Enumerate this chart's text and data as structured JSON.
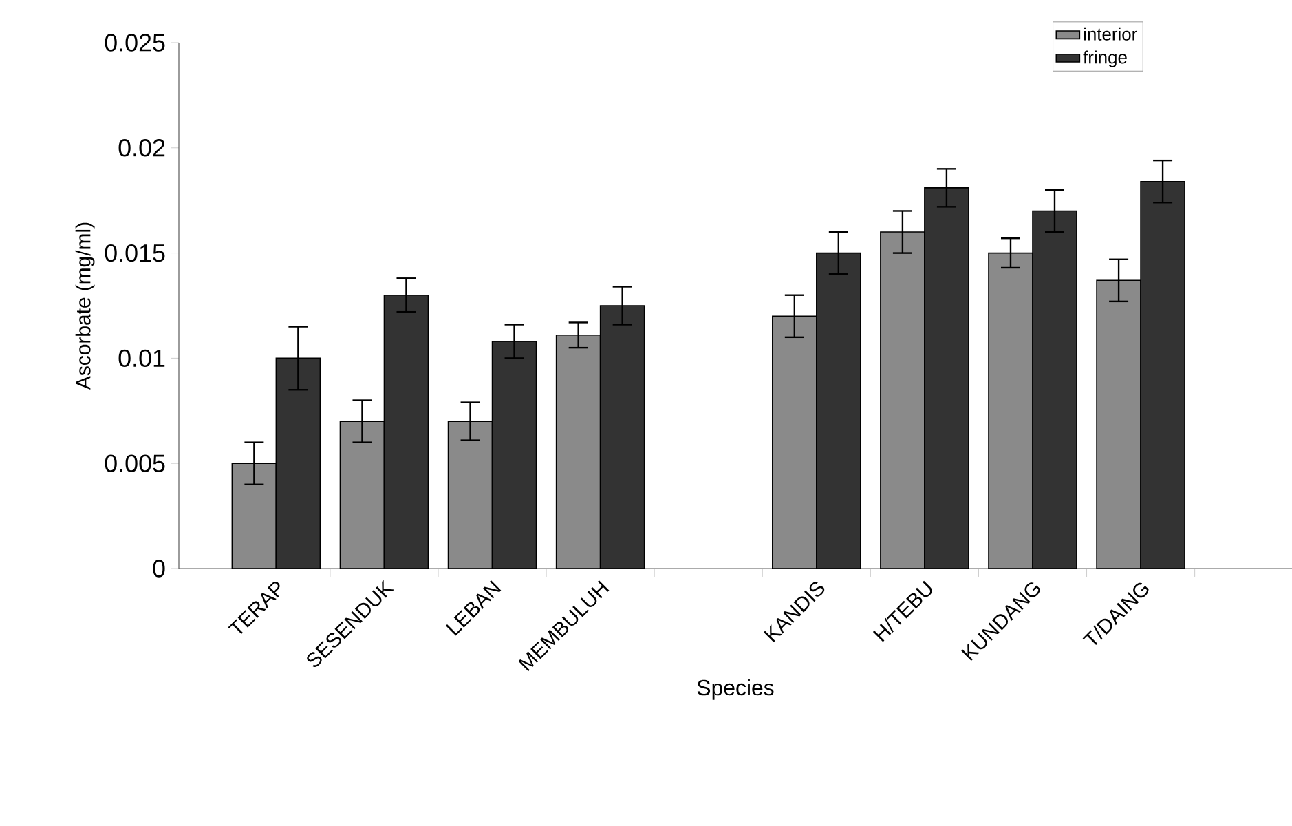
{
  "chart_data": {
    "type": "bar",
    "xlabel": "Species",
    "ylabel": "Ascorbate (mg/ml)",
    "categories": [
      "TERAP",
      "SESENDUK",
      "LEBAN",
      "MEMBULUH",
      null,
      "KANDIS",
      "H/TEBU",
      "KUNDANG",
      "T/DAING"
    ],
    "series": [
      {
        "name": "interior",
        "color": "#8a8a8a",
        "values": [
          0.005,
          0.007,
          0.007,
          0.0111,
          null,
          0.012,
          0.016,
          0.015,
          0.0137
        ],
        "errors": [
          0.001,
          0.001,
          0.0009,
          0.0006,
          null,
          0.001,
          0.001,
          0.0007,
          0.001
        ]
      },
      {
        "name": "fringe",
        "color": "#333333",
        "values": [
          0.01,
          0.013,
          0.0108,
          0.0125,
          null,
          0.015,
          0.0181,
          0.017,
          0.0184
        ],
        "errors": [
          0.0015,
          0.0008,
          0.0008,
          0.0009,
          null,
          0.001,
          0.0009,
          0.001,
          0.001
        ]
      }
    ],
    "ylim": [
      0,
      0.025
    ],
    "yticks": [
      0,
      0.005,
      0.01,
      0.015,
      0.02,
      0.025
    ],
    "grid": false,
    "legend": "top right"
  }
}
